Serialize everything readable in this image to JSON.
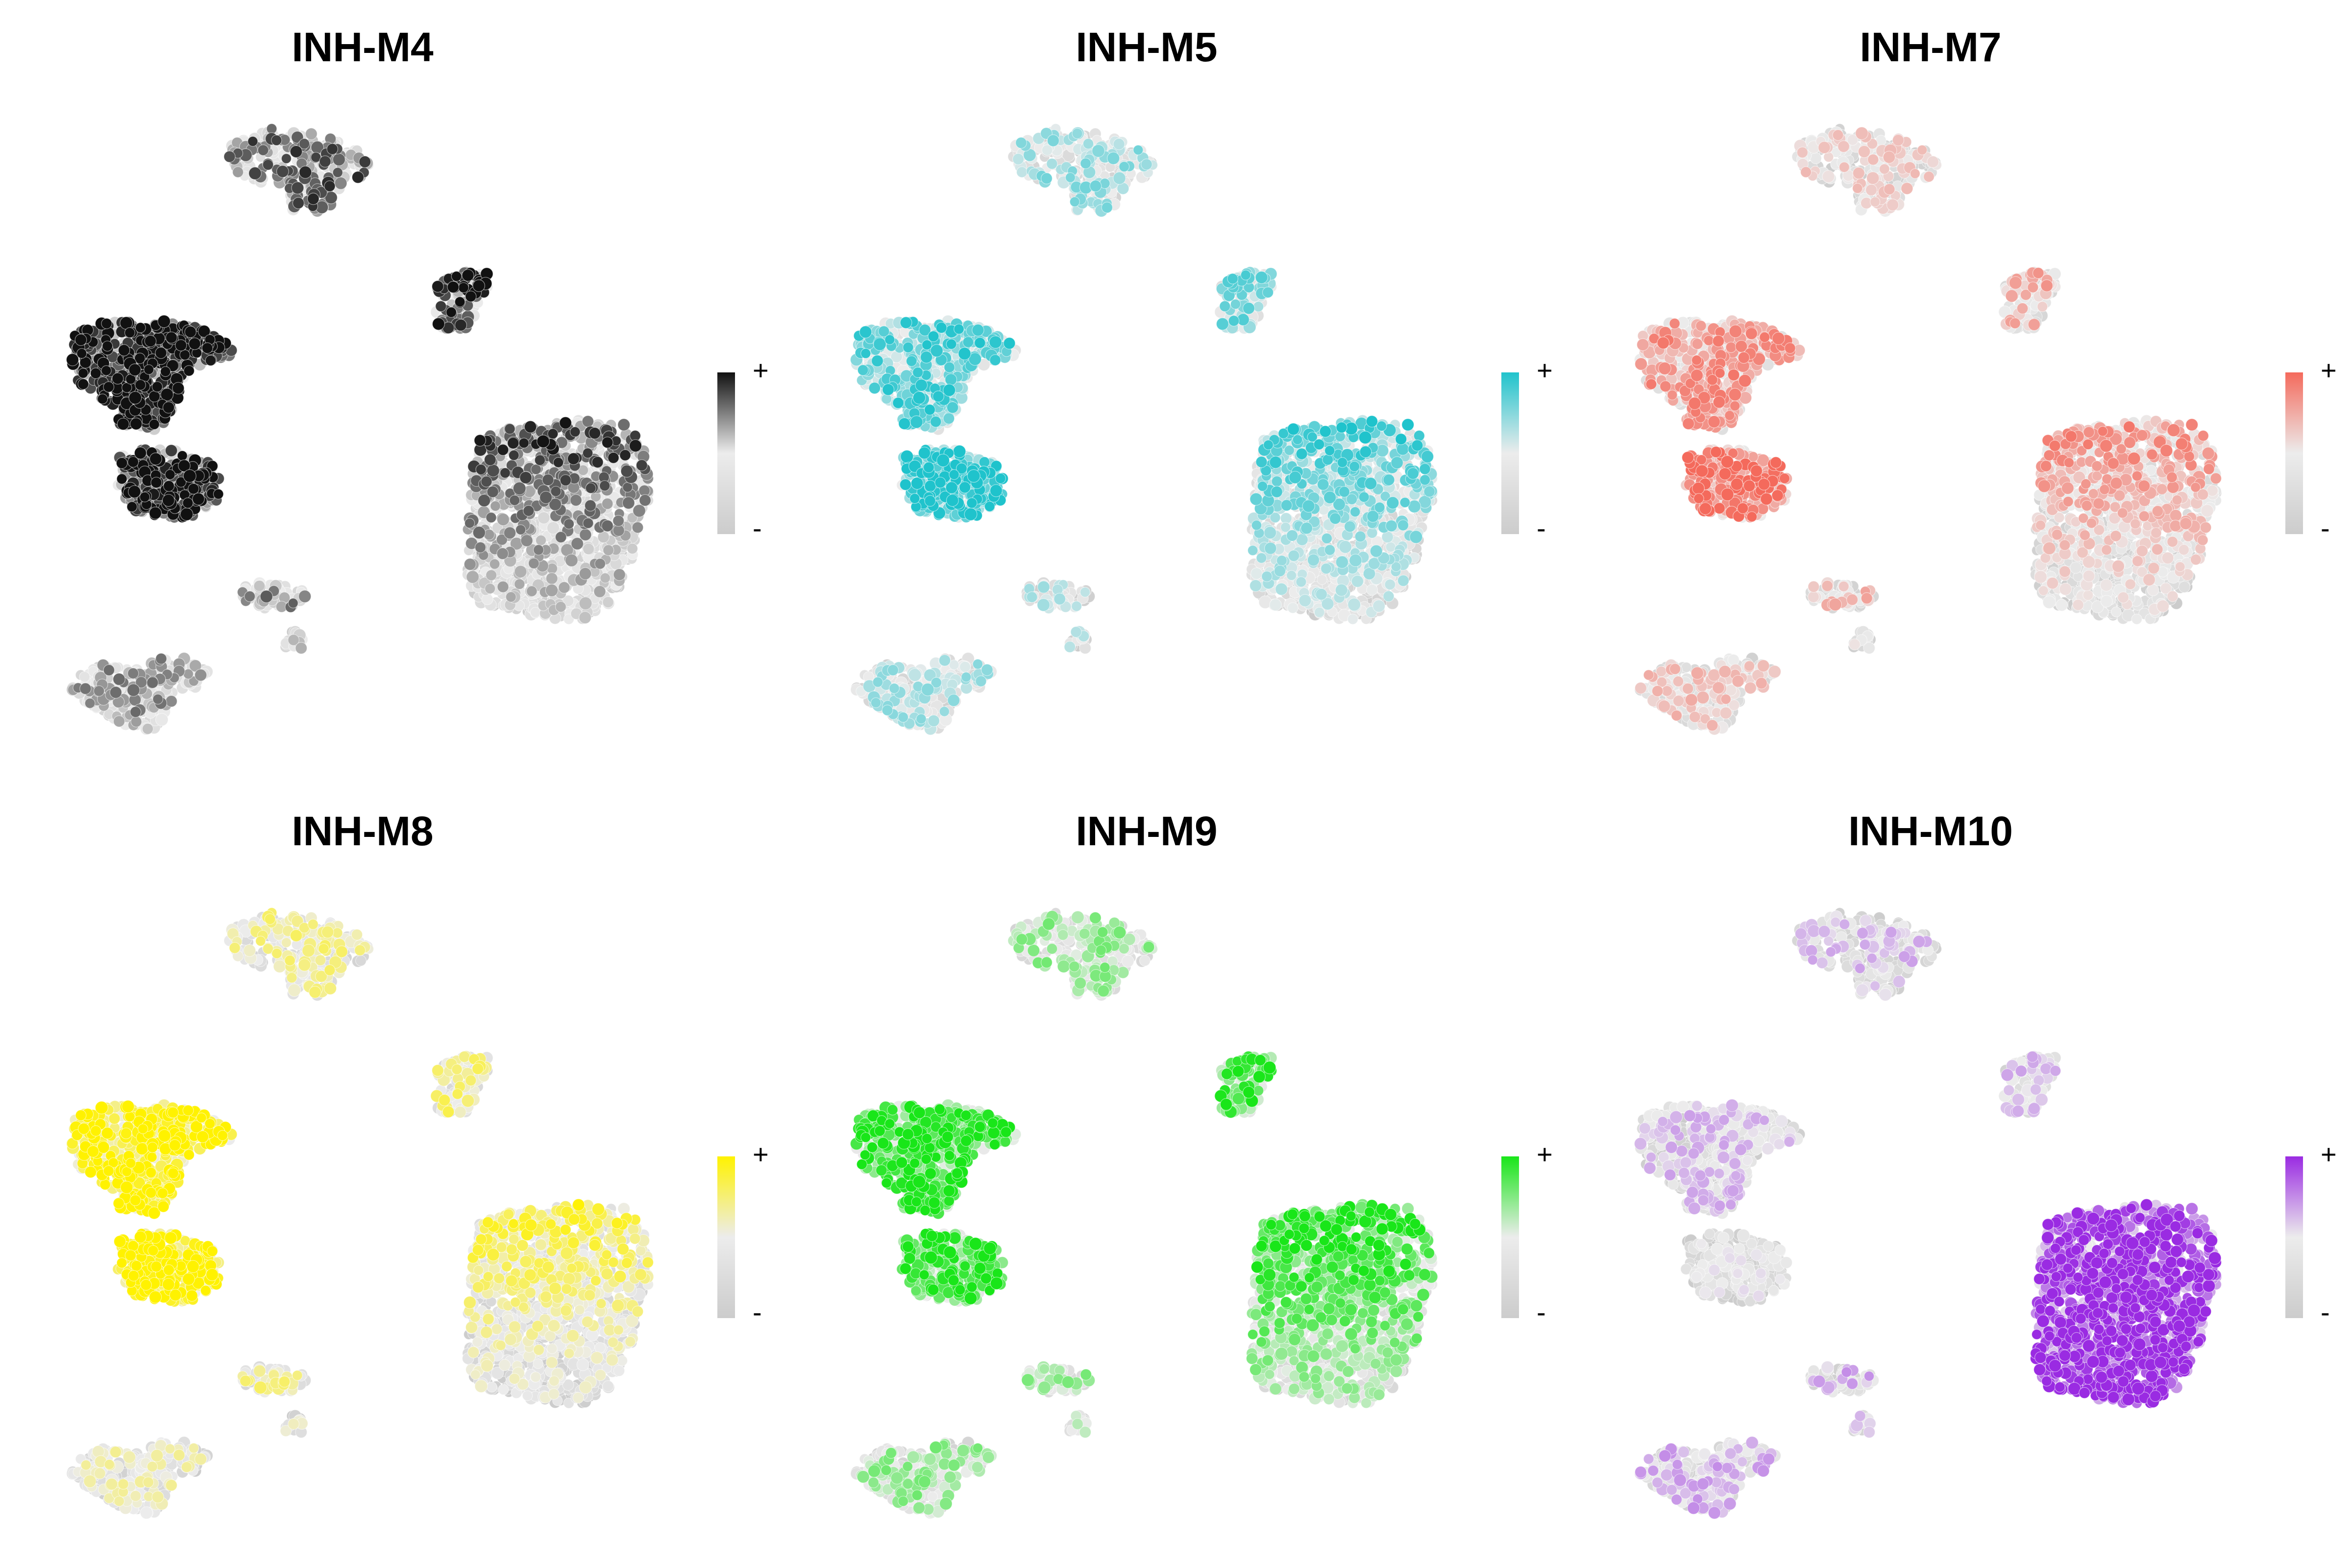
{
  "chart_data": [
    {
      "type": "scatter",
      "title": "INH-M4",
      "color": "#111111",
      "low_color": "#cccccc",
      "legend": {
        "high_label": "+",
        "low_label": "-"
      }
    },
    {
      "type": "scatter",
      "title": "INH-M5",
      "color": "#1fc3cc",
      "low_color": "#cccccc",
      "legend": {
        "high_label": "+",
        "low_label": "-"
      }
    },
    {
      "type": "scatter",
      "title": "INH-M7",
      "color": "#f46a5c",
      "low_color": "#cccccc",
      "legend": {
        "high_label": "+",
        "low_label": "-"
      }
    },
    {
      "type": "scatter",
      "title": "INH-M8",
      "color": "#fff200",
      "low_color": "#cccccc",
      "legend": {
        "high_label": "+",
        "low_label": "-"
      }
    },
    {
      "type": "scatter",
      "title": "INH-M9",
      "color": "#19e619",
      "low_color": "#cccccc",
      "legend": {
        "high_label": "+",
        "low_label": "-"
      }
    },
    {
      "type": "scatter",
      "title": "INH-M10",
      "color": "#9a2be2",
      "low_color": "#cccccc",
      "legend": {
        "high_label": "+",
        "low_label": "-"
      }
    }
  ]
}
